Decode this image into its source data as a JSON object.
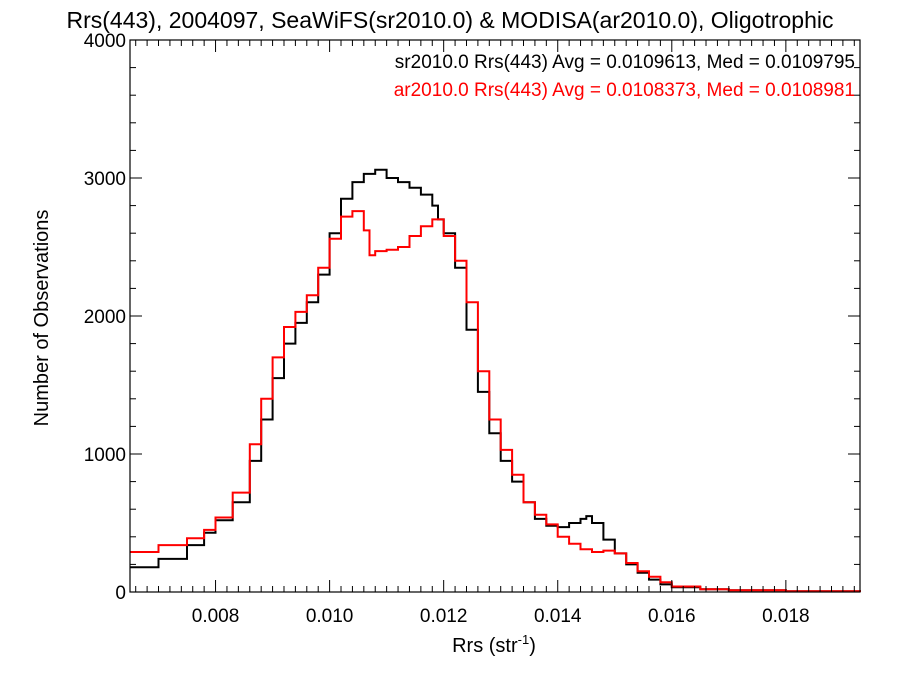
{
  "chart_data": {
    "type": "line",
    "title": "Rrs(443), 2004097, SeaWiFS(sr2010.0) & MODISA(ar2010.0), Oligotrophic",
    "xlabel_main": "Rrs (str",
    "xlabel_sup": "-1",
    "xlabel_close": ")",
    "ylabel": "Number of Observations",
    "xlim": [
      0.0065,
      0.0193
    ],
    "ylim": [
      0,
      4000
    ],
    "x_ticks": [
      0.008,
      0.01,
      0.012,
      0.014,
      0.016,
      0.018
    ],
    "x_tick_labels": [
      "0.008",
      "0.010",
      "0.012",
      "0.014",
      "0.016",
      "0.018"
    ],
    "y_ticks": [
      0,
      1000,
      2000,
      3000,
      4000
    ],
    "y_tick_labels": [
      "0",
      "1000",
      "2000",
      "3000",
      "4000"
    ],
    "grid": false,
    "legend_placement": "top-right",
    "series": [
      {
        "name": "sr2010.0 Rrs(443) Avg = 0.0109613, Med = 0.0109795",
        "color": "#000000",
        "points": [
          [
            0.0065,
            180
          ],
          [
            0.007,
            240
          ],
          [
            0.0075,
            340
          ],
          [
            0.0078,
            430
          ],
          [
            0.008,
            520
          ],
          [
            0.0083,
            650
          ],
          [
            0.0086,
            950
          ],
          [
            0.0088,
            1250
          ],
          [
            0.009,
            1550
          ],
          [
            0.0092,
            1800
          ],
          [
            0.0094,
            1950
          ],
          [
            0.0096,
            2100
          ],
          [
            0.0098,
            2300
          ],
          [
            0.01,
            2600
          ],
          [
            0.0102,
            2850
          ],
          [
            0.0104,
            2970
          ],
          [
            0.0106,
            3030
          ],
          [
            0.0108,
            3060
          ],
          [
            0.011,
            3000
          ],
          [
            0.0112,
            2970
          ],
          [
            0.0114,
            2930
          ],
          [
            0.0116,
            2880
          ],
          [
            0.0118,
            2800
          ],
          [
            0.0119,
            2700
          ],
          [
            0.012,
            2600
          ],
          [
            0.0122,
            2350
          ],
          [
            0.0124,
            1900
          ],
          [
            0.0126,
            1450
          ],
          [
            0.0128,
            1150
          ],
          [
            0.013,
            950
          ],
          [
            0.0132,
            800
          ],
          [
            0.0134,
            650
          ],
          [
            0.0136,
            530
          ],
          [
            0.0138,
            480
          ],
          [
            0.014,
            470
          ],
          [
            0.0142,
            500
          ],
          [
            0.0144,
            530
          ],
          [
            0.0145,
            550
          ],
          [
            0.0146,
            500
          ],
          [
            0.0148,
            380
          ],
          [
            0.015,
            280
          ],
          [
            0.0152,
            200
          ],
          [
            0.0154,
            140
          ],
          [
            0.0156,
            90
          ],
          [
            0.0158,
            55
          ],
          [
            0.016,
            35
          ],
          [
            0.0165,
            20
          ],
          [
            0.017,
            12
          ],
          [
            0.018,
            6
          ],
          [
            0.0193,
            0
          ]
        ]
      },
      {
        "name": "ar2010.0 Rrs(443) Avg = 0.0108373, Med = 0.0108981",
        "color": "#ff0000",
        "points": [
          [
            0.0065,
            290
          ],
          [
            0.007,
            340
          ],
          [
            0.0075,
            390
          ],
          [
            0.0078,
            450
          ],
          [
            0.008,
            540
          ],
          [
            0.0083,
            720
          ],
          [
            0.0086,
            1070
          ],
          [
            0.0088,
            1400
          ],
          [
            0.009,
            1700
          ],
          [
            0.0092,
            1920
          ],
          [
            0.0094,
            2030
          ],
          [
            0.0096,
            2150
          ],
          [
            0.0098,
            2350
          ],
          [
            0.01,
            2560
          ],
          [
            0.0102,
            2720
          ],
          [
            0.0104,
            2760
          ],
          [
            0.0106,
            2620
          ],
          [
            0.0107,
            2440
          ],
          [
            0.0108,
            2470
          ],
          [
            0.011,
            2480
          ],
          [
            0.0112,
            2500
          ],
          [
            0.0114,
            2580
          ],
          [
            0.0116,
            2650
          ],
          [
            0.0118,
            2700
          ],
          [
            0.012,
            2580
          ],
          [
            0.0122,
            2400
          ],
          [
            0.0124,
            2100
          ],
          [
            0.0126,
            1600
          ],
          [
            0.0128,
            1250
          ],
          [
            0.013,
            1030
          ],
          [
            0.0132,
            850
          ],
          [
            0.0134,
            650
          ],
          [
            0.0136,
            560
          ],
          [
            0.0138,
            490
          ],
          [
            0.014,
            400
          ],
          [
            0.0142,
            350
          ],
          [
            0.0144,
            310
          ],
          [
            0.0146,
            290
          ],
          [
            0.0148,
            300
          ],
          [
            0.015,
            280
          ],
          [
            0.0152,
            210
          ],
          [
            0.0154,
            150
          ],
          [
            0.0156,
            110
          ],
          [
            0.0158,
            70
          ],
          [
            0.016,
            40
          ],
          [
            0.0165,
            20
          ],
          [
            0.017,
            12
          ],
          [
            0.018,
            6
          ],
          [
            0.0193,
            0
          ]
        ]
      }
    ]
  }
}
